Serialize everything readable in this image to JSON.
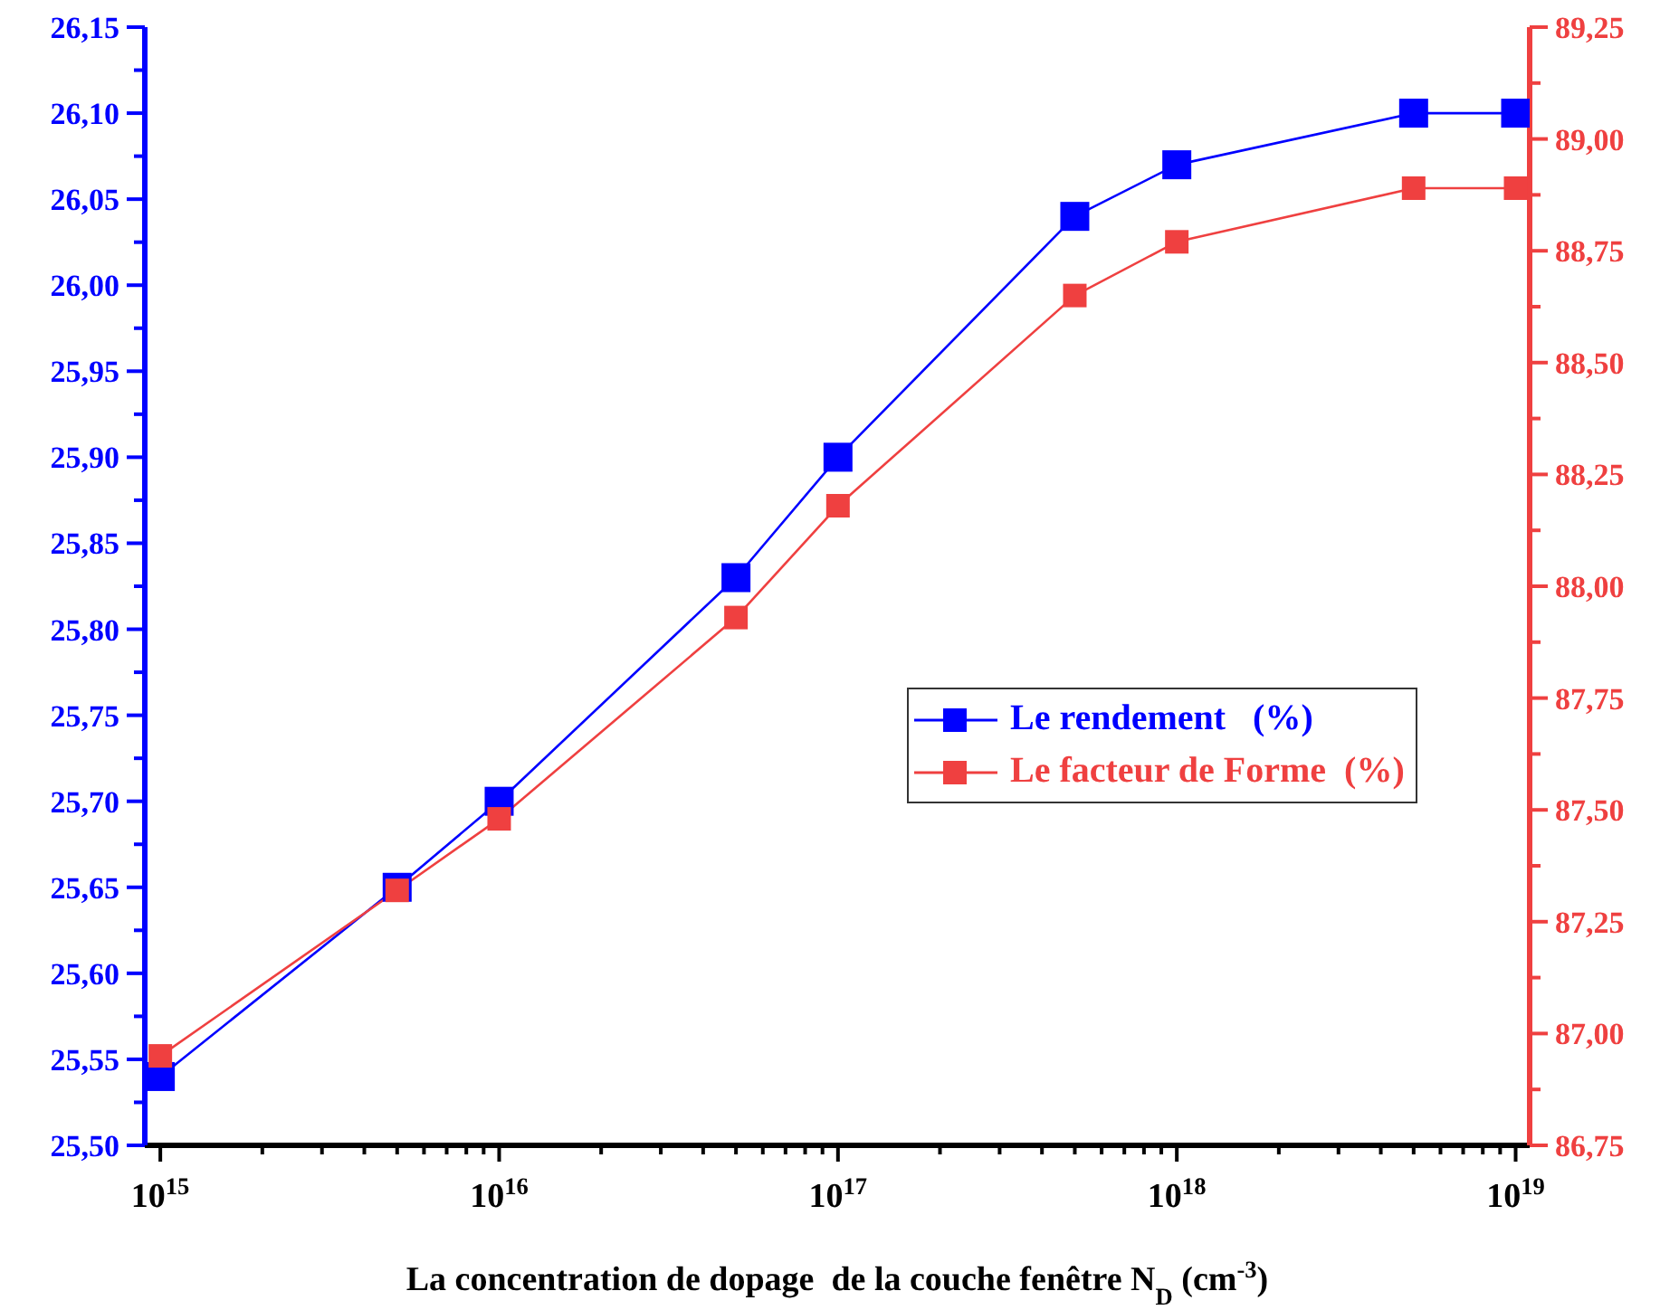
{
  "chart_data": {
    "type": "line",
    "xlabel": "La concentration de dopage  de la couche fenêtre N$_{D}$ (cm$^{-3}$)",
    "log": "x",
    "x": [
      1000000000000000.0,
      5000000000000000.0,
      1e+16,
      5e+16,
      1e+17,
      5e+17,
      1e+18,
      5e+18,
      1e+19
    ],
    "xlim": [
      900000000000000.0,
      1.1e+19
    ],
    "xticks": [
      {
        "value": 1000000000000000.0,
        "label": "10$^{15}$"
      },
      {
        "value": 2000000000000000.0,
        "label": null
      },
      {
        "value": 3000000000000000.0,
        "label": null
      },
      {
        "value": 4000000000000000.0,
        "label": null
      },
      {
        "value": 5000000000000000.0,
        "label": null
      },
      {
        "value": 6000000000000000.0,
        "label": null
      },
      {
        "value": 7000000000000000.0,
        "label": null
      },
      {
        "value": 8000000000000000.0,
        "label": null
      },
      {
        "value": 9000000000000000.0,
        "label": null
      },
      {
        "value": 1e+16,
        "label": "10$^{16}$"
      },
      {
        "value": 2e+16,
        "label": null
      },
      {
        "value": 3e+16,
        "label": null
      },
      {
        "value": 4e+16,
        "label": null
      },
      {
        "value": 5e+16,
        "label": null
      },
      {
        "value": 6e+16,
        "label": null
      },
      {
        "value": 7e+16,
        "label": null
      },
      {
        "value": 8e+16,
        "label": null
      },
      {
        "value": 9e+16,
        "label": null
      },
      {
        "value": 1e+17,
        "label": "10$^{17}$"
      },
      {
        "value": 2e+17,
        "label": null
      },
      {
        "value": 3e+17,
        "label": null
      },
      {
        "value": 4e+17,
        "label": null
      },
      {
        "value": 5e+17,
        "label": null
      },
      {
        "value": 6e+17,
        "label": null
      },
      {
        "value": 7e+17,
        "label": null
      },
      {
        "value": 8e+17,
        "label": null
      },
      {
        "value": 9e+17,
        "label": null
      },
      {
        "value": 1e+18,
        "label": "10$^{18}$"
      },
      {
        "value": 2e+18,
        "label": null
      },
      {
        "value": 3e+18,
        "label": null
      },
      {
        "value": 4e+18,
        "label": null
      },
      {
        "value": 5e+18,
        "label": null
      },
      {
        "value": 6e+18,
        "label": null
      },
      {
        "value": 7e+18,
        "label": null
      },
      {
        "value": 8e+18,
        "label": null
      },
      {
        "value": 9e+18,
        "label": null
      },
      {
        "value": 1e+19,
        "label": "10$^{19}$"
      }
    ],
    "ylim": [
      25.5,
      26.15
    ],
    "yticks": [
      {
        "value": 25.5,
        "label": "25,50"
      },
      {
        "value": 25.525,
        "label": null
      },
      {
        "value": 25.55,
        "label": "25,55"
      },
      {
        "value": 25.575,
        "label": null
      },
      {
        "value": 25.6,
        "label": "25,60"
      },
      {
        "value": 25.625,
        "label": null
      },
      {
        "value": 25.65,
        "label": "25,65"
      },
      {
        "value": 25.675,
        "label": null
      },
      {
        "value": 25.7,
        "label": "25,70"
      },
      {
        "value": 25.725,
        "label": null
      },
      {
        "value": 25.75,
        "label": "25,75"
      },
      {
        "value": 25.775,
        "label": null
      },
      {
        "value": 25.8,
        "label": "25,80"
      },
      {
        "value": 25.825,
        "label": null
      },
      {
        "value": 25.85,
        "label": "25,85"
      },
      {
        "value": 25.875,
        "label": null
      },
      {
        "value": 25.9,
        "label": "25,90"
      },
      {
        "value": 25.925,
        "label": null
      },
      {
        "value": 25.95,
        "label": "25,95"
      },
      {
        "value": 25.975,
        "label": null
      },
      {
        "value": 26.0,
        "label": "26,00"
      },
      {
        "value": 26.025,
        "label": null
      },
      {
        "value": 26.05,
        "label": "26,05"
      },
      {
        "value": 26.075,
        "label": null
      },
      {
        "value": 26.1,
        "label": "26,10"
      },
      {
        "value": 26.125,
        "label": null
      },
      {
        "value": 26.15,
        "label": "26,15"
      }
    ],
    "y2lim": [
      86.75,
      89.25
    ],
    "y2ticks": [
      {
        "value": 86.75,
        "label": "86,75"
      },
      {
        "value": 86.875,
        "label": null
      },
      {
        "value": 87.0,
        "label": "87,00"
      },
      {
        "value": 87.125,
        "label": null
      },
      {
        "value": 87.25,
        "label": "87,25"
      },
      {
        "value": 87.375,
        "label": null
      },
      {
        "value": 87.5,
        "label": "87,50"
      },
      {
        "value": 87.625,
        "label": null
      },
      {
        "value": 87.75,
        "label": "87,75"
      },
      {
        "value": 87.875,
        "label": null
      },
      {
        "value": 88.0,
        "label": "88,00"
      },
      {
        "value": 88.125,
        "label": null
      },
      {
        "value": 88.25,
        "label": "88,25"
      },
      {
        "value": 88.375,
        "label": null
      },
      {
        "value": 88.5,
        "label": "88,50"
      },
      {
        "value": 88.625,
        "label": null
      },
      {
        "value": 88.75,
        "label": "88,75"
      },
      {
        "value": 88.875,
        "label": null
      },
      {
        "value": 89.0,
        "label": "89,00"
      },
      {
        "value": 89.125,
        "label": null
      },
      {
        "value": 89.25,
        "label": "89,25"
      }
    ],
    "grid": false,
    "legend": "right",
    "marker": "square",
    "line_style": "solid",
    "series": [
      {
        "name": "Le rendement   (%)",
        "color": "#0000ff",
        "values": [
          25.54,
          25.65,
          25.7,
          25.83,
          25.9,
          26.04,
          26.07,
          26.1,
          26.1
        ]
      },
      {
        "name": "Le facteur de Forme  (%)",
        "color": "#ef4040",
        "axis": "y2",
        "values": [
          86.95,
          87.32,
          87.48,
          87.93,
          88.18,
          88.65,
          88.77,
          88.89,
          88.89
        ]
      }
    ]
  }
}
